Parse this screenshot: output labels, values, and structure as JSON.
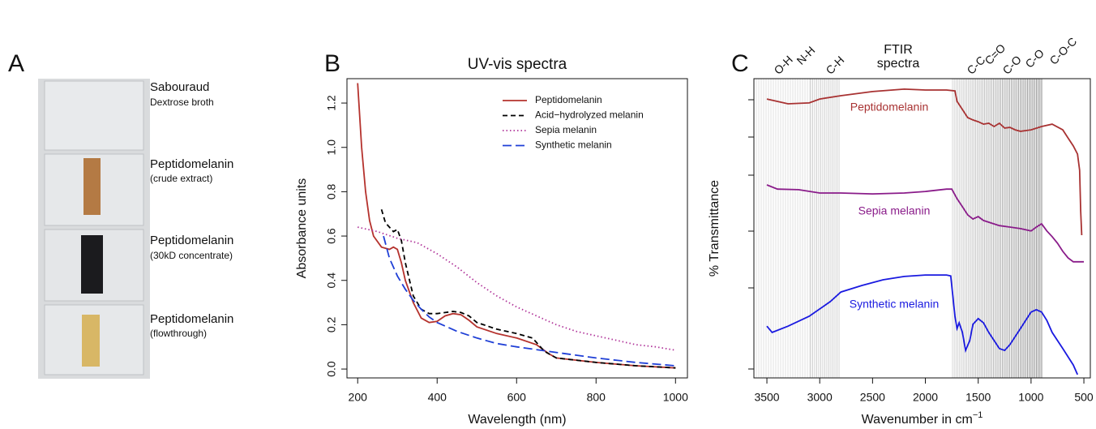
{
  "panel_a": {
    "panel_label": "A",
    "vials": [
      {
        "title": "Sabouraud",
        "subtitle": "Dextrose broth"
      },
      {
        "title": "Peptidomelanin",
        "subtitle": "(crude extract)"
      },
      {
        "title": "Peptidomelanin",
        "subtitle": "(30kD concentrate)"
      },
      {
        "title": "Peptidomelanin",
        "subtitle": "(flowthrough)"
      }
    ]
  },
  "chart_data": [
    {
      "type": "line",
      "panel_label": "B",
      "title": "UV-vis spectra",
      "xlabel": "Wavelength (nm)",
      "ylabel": "Absorbance units",
      "xlim": [
        173,
        1030
      ],
      "ylim": [
        -0.04,
        1.31
      ],
      "xticks": [
        200,
        400,
        600,
        800,
        1000
      ],
      "yticks": [
        {
          "value": 0,
          "label": "0.0"
        },
        0.2,
        0.4,
        0.6,
        0.8,
        {
          "value": 1,
          "label": "1.0"
        },
        1.2
      ],
      "legend": "top-right",
      "series": [
        {
          "name": "Peptidomelanin",
          "color": "#b5322d",
          "dash": "solid",
          "x": [
            200,
            210,
            220,
            230,
            240,
            260,
            280,
            290,
            300,
            310,
            320,
            340,
            360,
            380,
            400,
            420,
            440,
            460,
            480,
            500,
            550,
            600,
            650,
            680,
            700,
            800,
            900,
            1000
          ],
          "values": [
            1.29,
            1.0,
            0.8,
            0.67,
            0.6,
            0.55,
            0.54,
            0.55,
            0.54,
            0.48,
            0.4,
            0.3,
            0.23,
            0.21,
            0.215,
            0.24,
            0.25,
            0.245,
            0.22,
            0.19,
            0.16,
            0.14,
            0.11,
            0.07,
            0.05,
            0.03,
            0.015,
            0.005
          ]
        },
        {
          "name": "Acid−hydrolyzed melanin",
          "color": "#000000",
          "dash": "dashed",
          "x": [
            260,
            270,
            280,
            290,
            300,
            310,
            320,
            340,
            360,
            380,
            400,
            420,
            440,
            460,
            480,
            500,
            550,
            600,
            640,
            670,
            700,
            800,
            900,
            1000
          ],
          "values": [
            0.72,
            0.66,
            0.64,
            0.62,
            0.63,
            0.58,
            0.48,
            0.33,
            0.27,
            0.25,
            0.25,
            0.255,
            0.26,
            0.255,
            0.24,
            0.21,
            0.18,
            0.16,
            0.14,
            0.08,
            0.05,
            0.03,
            0.015,
            0.005
          ]
        },
        {
          "name": "Sepia melanin",
          "color": "#b0359a",
          "dash": "dotted",
          "x": [
            200,
            250,
            300,
            350,
            400,
            450,
            500,
            550,
            600,
            650,
            700,
            750,
            800,
            850,
            900,
            950,
            1000
          ],
          "values": [
            0.64,
            0.62,
            0.59,
            0.57,
            0.52,
            0.46,
            0.39,
            0.33,
            0.28,
            0.24,
            0.2,
            0.17,
            0.15,
            0.13,
            0.11,
            0.1,
            0.085
          ]
        },
        {
          "name": "Synthetic melanin",
          "color": "#1f3fd6",
          "dash": "longdash",
          "x": [
            265,
            280,
            300,
            320,
            340,
            360,
            380,
            400,
            450,
            500,
            550,
            600,
            700,
            800,
            900,
            1000
          ],
          "values": [
            0.6,
            0.5,
            0.42,
            0.36,
            0.31,
            0.27,
            0.235,
            0.21,
            0.17,
            0.14,
            0.115,
            0.1,
            0.075,
            0.05,
            0.03,
            0.015
          ]
        }
      ]
    },
    {
      "type": "line",
      "panel_label": "C",
      "title_lines": [
        "FTIR",
        "spectra"
      ],
      "xlabel": "Wavenumber in cm",
      "xlabel_superscript": "−1",
      "ylabel": "% Transmittance",
      "band_labels": [
        "O-H",
        "N-H",
        "C-H",
        "C-C",
        "C=O",
        "C-O",
        "C-O",
        "C-O-C"
      ],
      "xlim": [
        3623,
        439
      ],
      "ylim": [
        0,
        100
      ],
      "xticks": [
        3500,
        3000,
        2500,
        2000,
        1500,
        1000,
        500
      ],
      "series": [
        {
          "name": "Peptidomelanin",
          "color": "#a83232",
          "dash": "solid",
          "x": [
            3500,
            3300,
            3100,
            3000,
            2800,
            2500,
            2200,
            2000,
            1800,
            1720,
            1700,
            1650,
            1600,
            1550,
            1500,
            1450,
            1400,
            1350,
            1300,
            1250,
            1200,
            1150,
            1100,
            1000,
            900,
            800,
            700,
            650,
            600,
            560,
            540,
            530,
            520
          ],
          "values": [
            93.2,
            91.6,
            91.9,
            93.2,
            94.3,
            95.7,
            96.5,
            96.2,
            96.2,
            95.9,
            92.4,
            89.7,
            87.0,
            86.2,
            85.6,
            84.8,
            85.1,
            84.0,
            85.1,
            83.5,
            83.7,
            82.9,
            82.4,
            82.9,
            84.0,
            84.8,
            82.9,
            80.2,
            77.5,
            74.8,
            69.4,
            55.8,
            47.7
          ]
        },
        {
          "name": "Sepia melanin",
          "color": "#8a1c8a",
          "dash": "solid",
          "x": [
            3500,
            3400,
            3200,
            3000,
            2800,
            2500,
            2200,
            2000,
            1800,
            1750,
            1700,
            1650,
            1600,
            1550,
            1500,
            1450,
            1300,
            1200,
            1100,
            1000,
            950,
            900,
            850,
            800,
            750,
            700,
            650,
            600,
            500
          ],
          "values": [
            64.5,
            63.1,
            62.9,
            61.8,
            61.8,
            61.5,
            61.8,
            62.3,
            63.1,
            63.1,
            59.9,
            57.2,
            54.5,
            53.1,
            53.9,
            52.6,
            50.9,
            50.4,
            49.9,
            49.1,
            50.4,
            51.5,
            49.1,
            47.2,
            45.0,
            42.3,
            40.1,
            38.8,
            38.8
          ]
        },
        {
          "name": "Synthetic melanin",
          "color": "#1a1ae0",
          "dash": "solid",
          "x": [
            3500,
            3450,
            3300,
            3100,
            2900,
            2800,
            2600,
            2400,
            2200,
            2000,
            1800,
            1760,
            1720,
            1700,
            1680,
            1650,
            1620,
            1580,
            1550,
            1500,
            1450,
            1400,
            1300,
            1250,
            1200,
            1100,
            1000,
            950,
            900,
            850,
            800,
            700,
            600,
            560
          ],
          "values": [
            17.3,
            15.2,
            17.3,
            20.6,
            25.5,
            28.7,
            30.9,
            32.8,
            33.9,
            34.4,
            34.4,
            34.1,
            20.6,
            16.5,
            18.4,
            15.2,
            9.2,
            12.5,
            17.9,
            19.8,
            18.4,
            15.2,
            9.8,
            9.2,
            11.1,
            16.5,
            22.0,
            22.8,
            22.0,
            19.2,
            15.2,
            9.8,
            4.3,
            1.1
          ]
        }
      ]
    }
  ]
}
